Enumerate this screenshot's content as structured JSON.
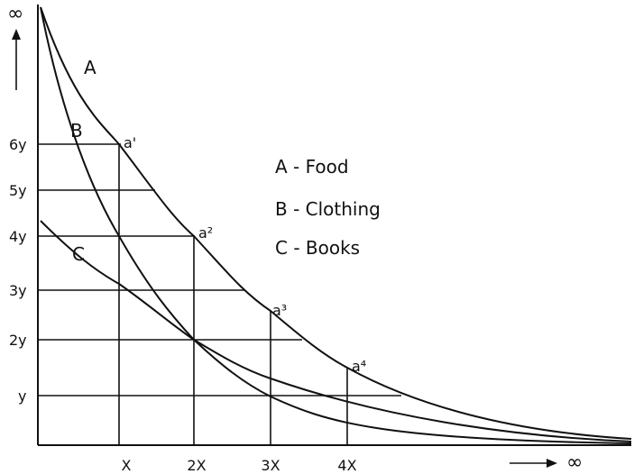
{
  "axis": {
    "y_infinity": "∞",
    "x_infinity": "∞",
    "y_labels": [
      "6y",
      "5y",
      "4y",
      "3y",
      "2y",
      "y"
    ],
    "x_labels": [
      "X",
      "2X",
      "3X",
      "4X"
    ]
  },
  "curves": [
    {
      "label": "A"
    },
    {
      "label": "B"
    },
    {
      "label": "C"
    }
  ],
  "points": [
    "a'",
    "a²",
    "a³",
    "a⁴"
  ],
  "legend": [
    "A - Food",
    "B - Clothing",
    "C - Books"
  ]
}
